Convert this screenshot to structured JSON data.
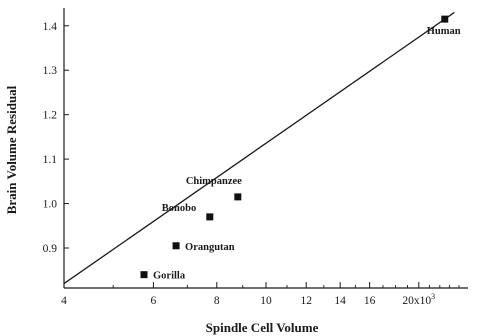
{
  "chart_data": {
    "type": "scatter",
    "xlabel": "Spindle Cell Volume",
    "ylabel": "Brain Volume Residual",
    "x_scale": "log",
    "xlim": [
      4,
      25
    ],
    "ylim": [
      0.81,
      1.44
    ],
    "x_ticks": [
      4,
      6,
      8,
      10,
      12,
      14,
      16,
      20
    ],
    "x_tick_labels": [
      "4",
      "6",
      "8",
      "10",
      "12",
      "14",
      "16",
      "20x10"
    ],
    "x_tick_exponent": "3",
    "y_ticks": [
      0.9,
      1.0,
      1.1,
      1.2,
      1.3,
      1.4
    ],
    "y_tick_labels": [
      "0.9",
      "1.0",
      "1.1",
      "1.2",
      "1.3",
      "1.4"
    ],
    "grid": false,
    "legend": "none",
    "points": [
      {
        "label": "Human",
        "x": 22.5,
        "y": 1.415
      },
      {
        "label": "Chimpanzee",
        "x": 8.8,
        "y": 1.015
      },
      {
        "label": "Bonobo",
        "x": 7.75,
        "y": 0.97
      },
      {
        "label": "Orangutan",
        "x": 6.65,
        "y": 0.905
      },
      {
        "label": "Gorilla",
        "x": 5.75,
        "y": 0.84
      }
    ],
    "fit_line": {
      "x": [
        4.0,
        23.5
      ],
      "y": [
        0.82,
        1.43
      ]
    }
  }
}
